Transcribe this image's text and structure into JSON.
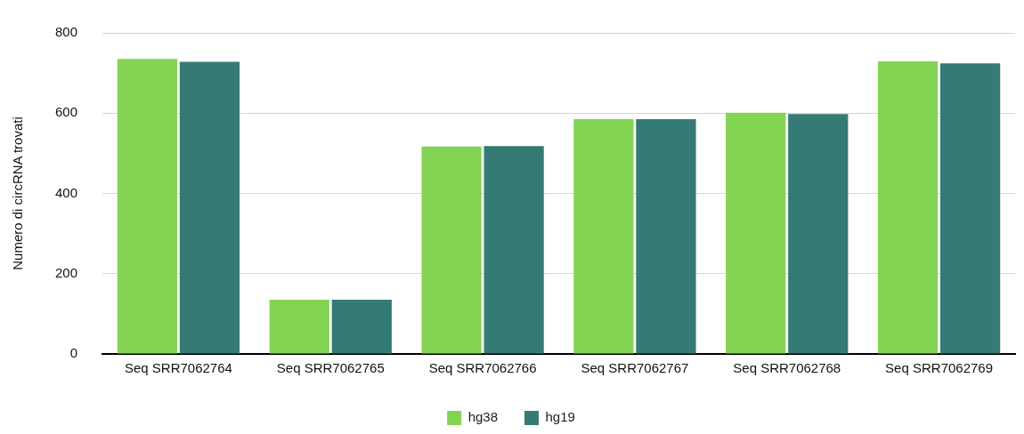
{
  "chart_data": {
    "type": "bar",
    "ylabel": "Numero di circRNA trovati",
    "categories": [
      "Seq SRR7062764",
      "Seq SRR7062765",
      "Seq SRR7062766",
      "Seq SRR7062767",
      "Seq SRR7062768",
      "Seq SRR7062769"
    ],
    "series": [
      {
        "name": "hg38",
        "color": "#84d454",
        "values": [
          735,
          135,
          517,
          585,
          601,
          729
        ]
      },
      {
        "name": "hg19",
        "color": "#357a75",
        "values": [
          728,
          135,
          518,
          585,
          598,
          724
        ]
      }
    ],
    "ylim": [
      0,
      800
    ],
    "yticks": [
      0,
      200,
      400,
      600,
      800
    ],
    "grid": "y",
    "legend": "bottom"
  }
}
